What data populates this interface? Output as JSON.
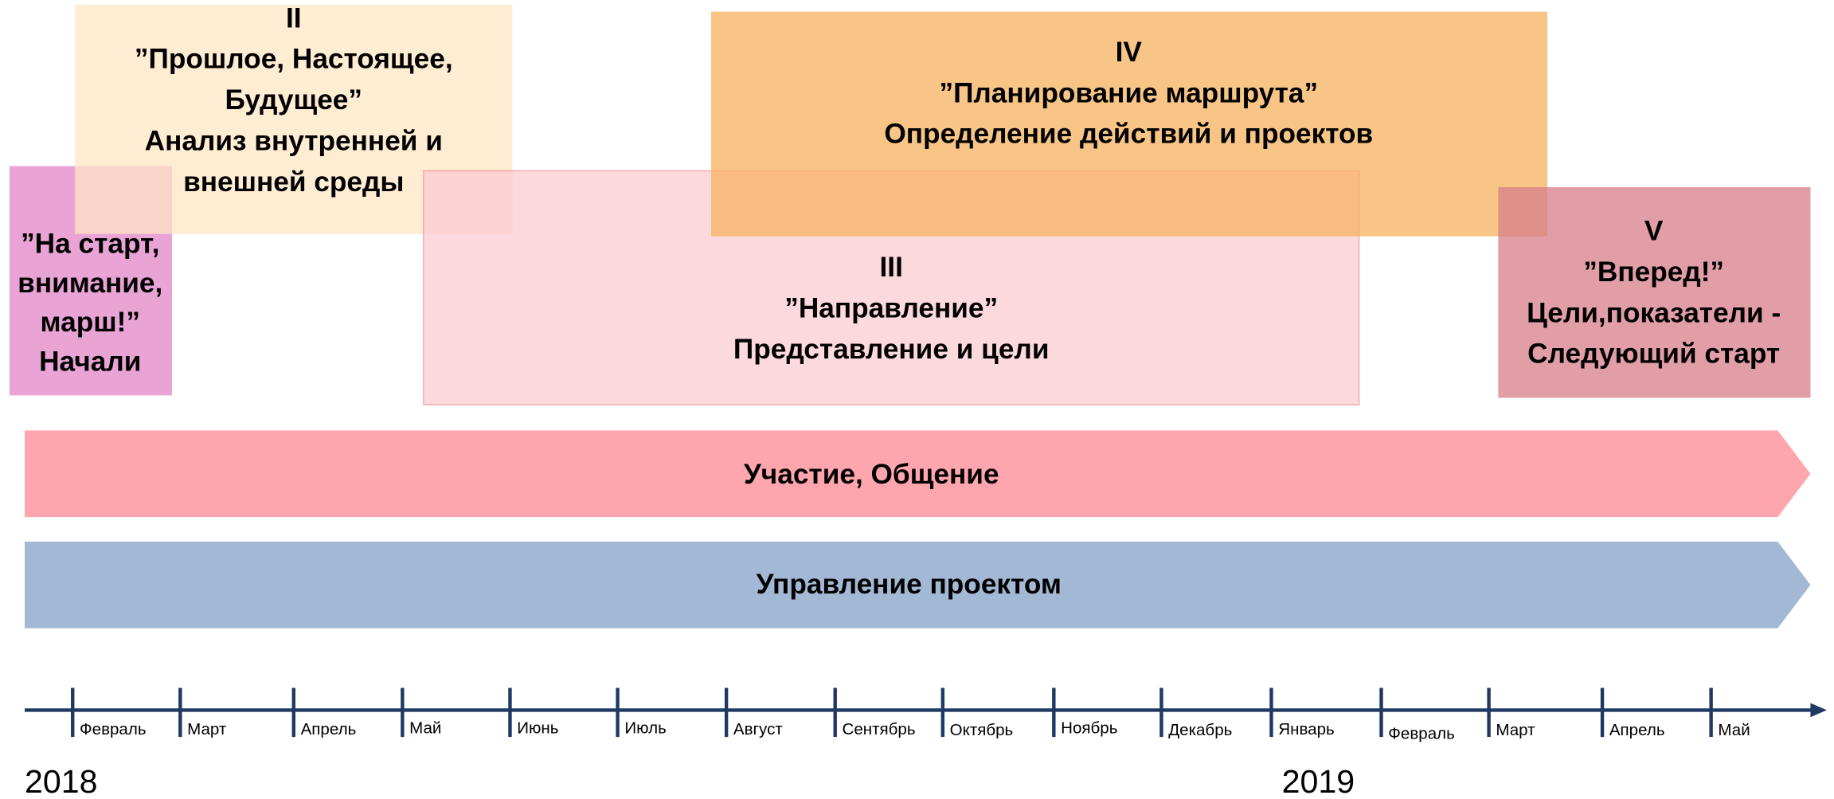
{
  "phases": [
    {
      "lines": [
        "”На старт,",
        "внимание,",
        "марш!”",
        "Начали"
      ]
    },
    {
      "lines": [
        "II",
        "”Прошлое, Настоящее,",
        "Будущее”",
        "Анализ внутренней и",
        "внешней среды"
      ]
    },
    {
      "lines": [
        "III",
        "”Направление”",
        "Представление и цели"
      ]
    },
    {
      "lines": [
        "IV",
        "”Планирование маршрута”",
        "Определение действий и проектов"
      ]
    },
    {
      "lines": [
        "V",
        "”Вперед!”",
        "Цели,показатели -",
        "Следующий старт"
      ]
    }
  ],
  "bands": [
    "Участие, Общение",
    "Управление проектом"
  ],
  "timeline": {
    "months": [
      "Февраль",
      "Март",
      "Апрель",
      "Май",
      "Июнь",
      "Июль",
      "Август",
      "Сентябрь",
      "Октябрь",
      "Ноябрь",
      "Декабрь",
      "Январь",
      "Февраль",
      "Март",
      "Апрель",
      "Май"
    ],
    "years": [
      "2018",
      "2019"
    ]
  }
}
